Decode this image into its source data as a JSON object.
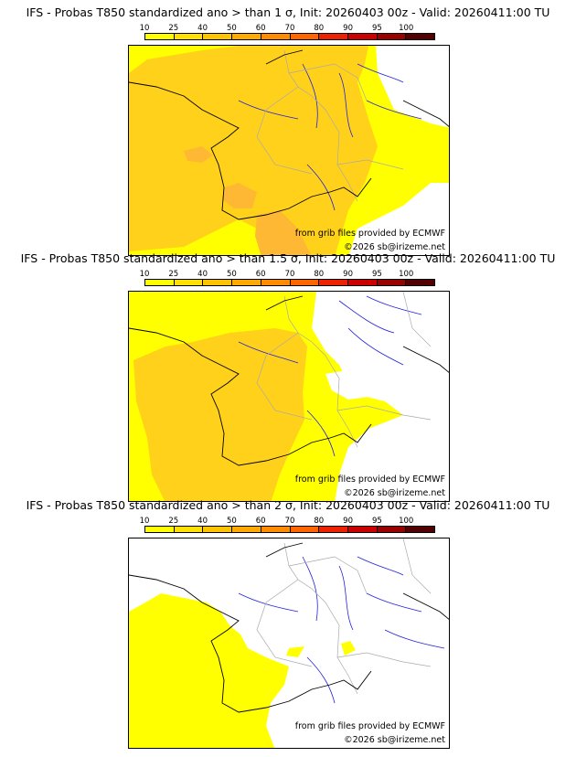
{
  "colorbar": {
    "levels": [
      "10",
      "25",
      "40",
      "50",
      "60",
      "70",
      "80",
      "90",
      "95",
      "100"
    ],
    "colors": [
      "#ffff00",
      "#ffe000",
      "#ffc400",
      "#ffaa00",
      "#ff8c00",
      "#ff6600",
      "#ee2200",
      "#cc0000",
      "#990000",
      "#550000"
    ]
  },
  "colors": {
    "yellow": "#ffff00",
    "light_orange": "#ffd11a",
    "orange": "#ffb833",
    "coast": "#000000",
    "rivers": "#2222dd",
    "borders": "#aaaaaa"
  },
  "panels": [
    {
      "title": "IFS - Probas T850  standardized ano > than 1 σ, Init: 20260403 00z - Valid: 20260411:00 TU",
      "source_credit": "from grib files provided by ECMWF",
      "copyright": "©2026 sb@irizeme.net"
    },
    {
      "title": "IFS - Probas T850  standardized ano > than 1.5 σ, Init: 20260403 00z - Valid: 20260411:00 TU",
      "source_credit": "from grib files provided by ECMWF",
      "copyright": "©2026 sb@irizeme.net"
    },
    {
      "title": "IFS - Probas T850  standardized ano > than 2 σ, Init: 20260403 00z - Valid: 20260411:00 TU",
      "source_credit": "from grib files provided by ECMWF",
      "copyright": "©2026 sb@irizeme.net"
    }
  ]
}
